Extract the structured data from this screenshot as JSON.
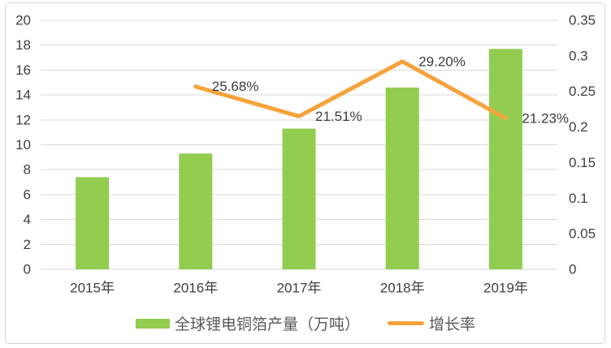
{
  "chart_data": {
    "type": "bar",
    "subtype": "bar+line-combo",
    "title": "",
    "categories": [
      "2015年",
      "2016年",
      "2017年",
      "2018年",
      "2019年"
    ],
    "series": [
      {
        "name": "全球锂电铜箔产量（万吨）",
        "type": "bar",
        "axis": "left",
        "values": [
          7.4,
          9.3,
          11.3,
          14.6,
          17.7
        ]
      },
      {
        "name": "增长率",
        "type": "line",
        "axis": "right",
        "values": [
          null,
          0.2568,
          0.2151,
          0.292,
          0.2123
        ],
        "point_labels": [
          null,
          "25.68%",
          "21.51%",
          "29.20%",
          "21.23%"
        ]
      }
    ],
    "left_axis": {
      "min": 0,
      "max": 20,
      "tick_labels": [
        "0",
        "2",
        "4",
        "6",
        "8",
        "10",
        "12",
        "14",
        "16",
        "18",
        "20"
      ]
    },
    "right_axis": {
      "min": 0,
      "max": 0.35,
      "tick_labels": [
        "0",
        "0.05",
        "0.1",
        "0.15",
        "0.2",
        "0.25",
        "0.3",
        "0.35"
      ]
    },
    "grid": true,
    "legend_position": "bottom"
  },
  "colors": {
    "bar": "#92cd50",
    "line": "#f7a23c",
    "grid": "#d9d9d9",
    "axis_text": "#404040",
    "legend_text": "#595959",
    "border": "#d8d8d8"
  }
}
